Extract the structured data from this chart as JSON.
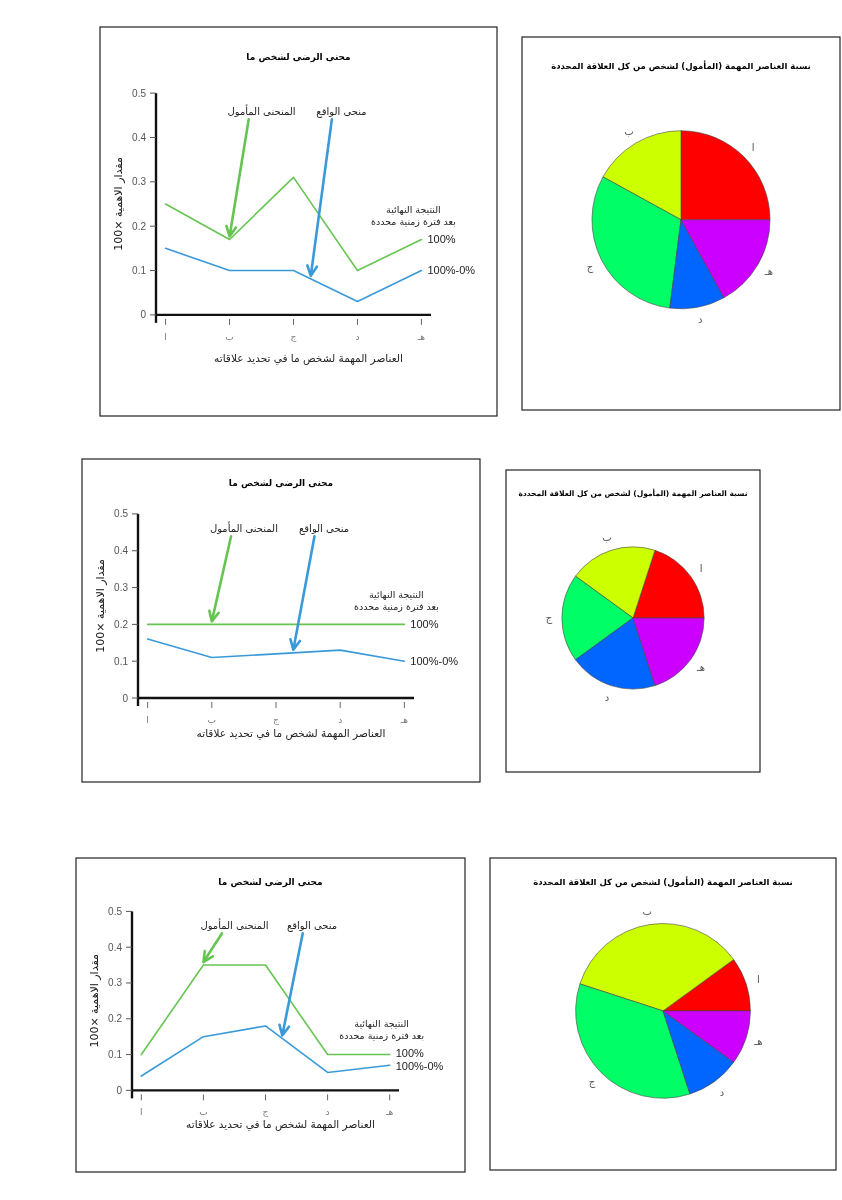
{
  "chart_data": [
    {
      "type": "line",
      "title": "محنى الرضى لشخص ما",
      "xlabel": "العناصر المهمة لشخص ما في تحديد علاقاته",
      "ylabel": "مقدار الاهمية ×100",
      "categories": [
        "ا",
        "ب",
        "ج",
        "د",
        "هـ"
      ],
      "series": [
        {
          "name": "المنحنى المأمول",
          "color": "#66c552",
          "values": [
            0.25,
            0.17,
            0.31,
            0.1,
            0.17
          ]
        },
        {
          "name": "منحى الواقع",
          "color": "#3a9ad9",
          "values": [
            0.15,
            0.1,
            0.1,
            0.03,
            0.1
          ]
        }
      ],
      "ylim": [
        0,
        0.5
      ],
      "yticks": [
        0,
        0.1,
        0.2,
        0.3,
        0.4,
        0.5
      ],
      "annotations": [
        "النتيجة النهائية",
        "بعد فترة زمنية محددة",
        "100%",
        "100%-0%"
      ]
    },
    {
      "type": "pie",
      "title": "نسبة العناصر المهمة (المأمول) لشخص من كل العلاقة المحددة",
      "categories": [
        "ا",
        "ب",
        "ج",
        "د",
        "هـ"
      ],
      "values": [
        25,
        17,
        31,
        10,
        17
      ],
      "colors": [
        "#ff0000",
        "#ccff00",
        "#00ff66",
        "#0066ff",
        "#cc00ff"
      ]
    },
    {
      "type": "line",
      "title": "محنى الرضى لشخص ما",
      "xlabel": "العناصر المهمة لشخص ما في تحديد علاقاته",
      "ylabel": "مقدار الاهمية ×100",
      "categories": [
        "ا",
        "ب",
        "ج",
        "د",
        "هـ"
      ],
      "series": [
        {
          "name": "المنحنى المأمول",
          "color": "#66c552",
          "values": [
            0.2,
            0.2,
            0.2,
            0.2,
            0.2
          ]
        },
        {
          "name": "منحى الواقع",
          "color": "#3a9ad9",
          "values": [
            0.16,
            0.11,
            0.12,
            0.13,
            0.1
          ]
        }
      ],
      "ylim": [
        0,
        0.5
      ],
      "yticks": [
        0,
        0.1,
        0.2,
        0.3,
        0.4,
        0.5
      ],
      "annotations": [
        "النتيجة النهائية",
        "بعد فترة زمنية محددة",
        "100%",
        "100%-0%"
      ]
    },
    {
      "type": "pie",
      "title": "نسبة العناصر المهمة (المأمول) لشخص من كل العلاقة المحددة",
      "categories": [
        "ا",
        "ب",
        "ج",
        "د",
        "هـ"
      ],
      "values": [
        20,
        20,
        20,
        20,
        20
      ],
      "colors": [
        "#ff0000",
        "#ccff00",
        "#00ff66",
        "#0066ff",
        "#cc00ff"
      ]
    },
    {
      "type": "line",
      "title": "محنى الرضى لشخص ما",
      "xlabel": "العناصر المهمة لشخص ما في تحديد علاقاته",
      "ylabel": "مقدار الاهمية ×100",
      "categories": [
        "ا",
        "ب",
        "ج",
        "د",
        "هـ"
      ],
      "series": [
        {
          "name": "المنحنى المأمول",
          "color": "#66c552",
          "values": [
            0.1,
            0.35,
            0.35,
            0.1,
            0.1
          ]
        },
        {
          "name": "منحى الواقع",
          "color": "#3a9ad9",
          "values": [
            0.04,
            0.15,
            0.18,
            0.05,
            0.07
          ]
        }
      ],
      "ylim": [
        0,
        0.5
      ],
      "yticks": [
        0,
        0.1,
        0.2,
        0.3,
        0.4,
        0.5
      ],
      "annotations": [
        "النتيجة النهائية",
        "بعد فترة زمنية محددة",
        "100%",
        "100%-0%"
      ]
    },
    {
      "type": "pie",
      "title": "نسبة العناصر المهمة (المأمول) لشخص من كل العلاقة المحددة",
      "categories": [
        "ا",
        "ب",
        "ج",
        "د",
        "هـ"
      ],
      "values": [
        10,
        35,
        35,
        10,
        10
      ],
      "colors": [
        "#ff0000",
        "#ccff00",
        "#00ff66",
        "#0066ff",
        "#cc00ff"
      ]
    }
  ]
}
